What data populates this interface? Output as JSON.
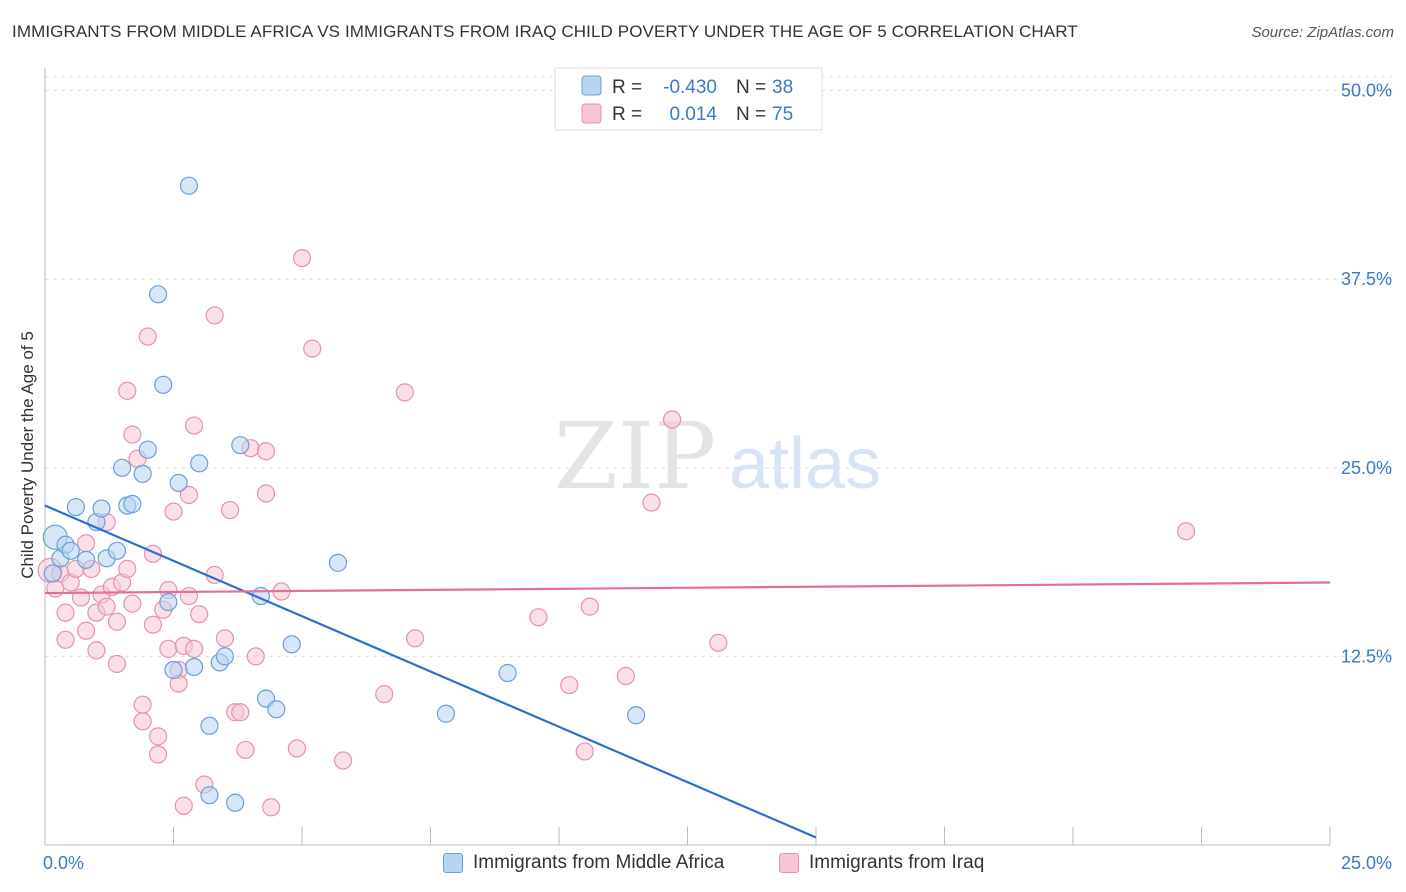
{
  "title": "IMMIGRANTS FROM MIDDLE AFRICA VS IMMIGRANTS FROM IRAQ CHILD POVERTY UNDER THE AGE OF 5 CORRELATION CHART",
  "source": "Source: ZipAtlas.com",
  "watermark": {
    "zip": "ZIP",
    "atlas": "atlas"
  },
  "colors": {
    "blue_fill": "#b8d4f3",
    "blue_stroke": "#6b9fd8",
    "blue_line": "#2c6fcf",
    "pink_fill": "#f7c5d5",
    "pink_stroke": "#e592ad",
    "pink_line": "#e0709a",
    "tick_text": "#3a78c9",
    "grid": "#dddddd"
  },
  "legend_top": [
    {
      "r_label": "R =",
      "r_value": "-0.430",
      "n_label": "N =",
      "n_value": "38"
    },
    {
      "r_label": "R =",
      "r_value": "0.014",
      "n_label": "N =",
      "n_value": "75"
    }
  ],
  "chart_data": {
    "type": "scatter",
    "title": "IMMIGRANTS FROM MIDDLE AFRICA VS IMMIGRANTS FROM IRAQ CHILD POVERTY UNDER THE AGE OF 5 CORRELATION CHART",
    "xlabel": "",
    "ylabel": "Child Poverty Under the Age of 5",
    "xlim": [
      0,
      25
    ],
    "ylim": [
      0,
      51.5
    ],
    "x_tick_labels": [
      "0.0%",
      "25.0%"
    ],
    "y_ticks": [
      12.5,
      25.0,
      37.5,
      50.0
    ],
    "y_tick_labels": [
      "12.5%",
      "25.0%",
      "37.5%",
      "50.0%"
    ],
    "grid": true,
    "series": [
      {
        "name": "Immigrants from Middle Africa",
        "color": "blue",
        "r": -0.43,
        "n": 38,
        "trend": {
          "x": [
            0,
            15.0
          ],
          "y": [
            22.5,
            0.5
          ]
        },
        "points": [
          {
            "x": 0.2,
            "y": 20.4,
            "big": true
          },
          {
            "x": 0.3,
            "y": 19.0
          },
          {
            "x": 0.4,
            "y": 19.9
          },
          {
            "x": 0.5,
            "y": 19.5
          },
          {
            "x": 0.6,
            "y": 22.4
          },
          {
            "x": 0.8,
            "y": 18.9
          },
          {
            "x": 1.0,
            "y": 21.4
          },
          {
            "x": 1.1,
            "y": 22.3
          },
          {
            "x": 1.2,
            "y": 19.0
          },
          {
            "x": 1.4,
            "y": 19.5
          },
          {
            "x": 1.5,
            "y": 25.0
          },
          {
            "x": 1.6,
            "y": 22.5
          },
          {
            "x": 1.7,
            "y": 22.6
          },
          {
            "x": 1.9,
            "y": 24.6
          },
          {
            "x": 2.0,
            "y": 26.2
          },
          {
            "x": 2.2,
            "y": 36.5
          },
          {
            "x": 2.3,
            "y": 30.5
          },
          {
            "x": 2.4,
            "y": 16.1
          },
          {
            "x": 2.5,
            "y": 11.6
          },
          {
            "x": 2.6,
            "y": 24.0
          },
          {
            "x": 2.8,
            "y": 43.7
          },
          {
            "x": 2.9,
            "y": 11.8
          },
          {
            "x": 3.0,
            "y": 25.3
          },
          {
            "x": 3.2,
            "y": 7.9
          },
          {
            "x": 3.2,
            "y": 3.3
          },
          {
            "x": 3.4,
            "y": 12.1
          },
          {
            "x": 3.5,
            "y": 12.5
          },
          {
            "x": 3.8,
            "y": 26.5
          },
          {
            "x": 3.7,
            "y": 2.8
          },
          {
            "x": 4.2,
            "y": 16.5
          },
          {
            "x": 4.3,
            "y": 9.7
          },
          {
            "x": 4.5,
            "y": 9.0
          },
          {
            "x": 4.8,
            "y": 13.3
          },
          {
            "x": 5.7,
            "y": 18.7
          },
          {
            "x": 7.8,
            "y": 8.7
          },
          {
            "x": 9.0,
            "y": 11.4
          },
          {
            "x": 11.5,
            "y": 8.6
          },
          {
            "x": 0.15,
            "y": 18.0
          }
        ]
      },
      {
        "name": "Immigrants from Iraq",
        "color": "pink",
        "r": 0.014,
        "n": 75,
        "trend": {
          "x": [
            0,
            25.0
          ],
          "y": [
            16.7,
            17.4
          ]
        },
        "points": [
          {
            "x": 0.1,
            "y": 18.2,
            "big": true
          },
          {
            "x": 0.2,
            "y": 17.0
          },
          {
            "x": 0.3,
            "y": 18.0
          },
          {
            "x": 0.4,
            "y": 15.4
          },
          {
            "x": 0.4,
            "y": 13.6
          },
          {
            "x": 0.5,
            "y": 17.4
          },
          {
            "x": 0.6,
            "y": 18.3
          },
          {
            "x": 0.7,
            "y": 16.4
          },
          {
            "x": 0.8,
            "y": 20.0
          },
          {
            "x": 0.8,
            "y": 14.2
          },
          {
            "x": 0.9,
            "y": 18.3
          },
          {
            "x": 1.0,
            "y": 15.4
          },
          {
            "x": 1.0,
            "y": 12.9
          },
          {
            "x": 1.1,
            "y": 16.6
          },
          {
            "x": 1.2,
            "y": 21.4
          },
          {
            "x": 1.2,
            "y": 15.8
          },
          {
            "x": 1.3,
            "y": 17.1
          },
          {
            "x": 1.4,
            "y": 12.0
          },
          {
            "x": 1.4,
            "y": 14.8
          },
          {
            "x": 1.5,
            "y": 17.4
          },
          {
            "x": 1.6,
            "y": 18.3
          },
          {
            "x": 1.6,
            "y": 30.1
          },
          {
            "x": 1.7,
            "y": 16.0
          },
          {
            "x": 1.7,
            "y": 27.2
          },
          {
            "x": 1.8,
            "y": 25.6
          },
          {
            "x": 1.9,
            "y": 8.2
          },
          {
            "x": 1.9,
            "y": 9.3
          },
          {
            "x": 2.0,
            "y": 33.7
          },
          {
            "x": 2.1,
            "y": 19.3
          },
          {
            "x": 2.1,
            "y": 14.6
          },
          {
            "x": 2.2,
            "y": 6.0
          },
          {
            "x": 2.2,
            "y": 7.2
          },
          {
            "x": 2.3,
            "y": 15.6
          },
          {
            "x": 2.4,
            "y": 16.9
          },
          {
            "x": 2.4,
            "y": 13.0
          },
          {
            "x": 2.5,
            "y": 22.1
          },
          {
            "x": 2.6,
            "y": 11.6
          },
          {
            "x": 2.6,
            "y": 10.7
          },
          {
            "x": 2.7,
            "y": 13.2
          },
          {
            "x": 2.7,
            "y": 2.6
          },
          {
            "x": 2.8,
            "y": 16.5
          },
          {
            "x": 2.8,
            "y": 23.2
          },
          {
            "x": 2.9,
            "y": 13.0
          },
          {
            "x": 2.9,
            "y": 27.8
          },
          {
            "x": 3.0,
            "y": 15.3
          },
          {
            "x": 3.1,
            "y": 4.0
          },
          {
            "x": 3.3,
            "y": 17.9
          },
          {
            "x": 3.3,
            "y": 35.1
          },
          {
            "x": 3.5,
            "y": 13.7
          },
          {
            "x": 3.6,
            "y": 22.2
          },
          {
            "x": 3.7,
            "y": 8.8
          },
          {
            "x": 3.8,
            "y": 8.8
          },
          {
            "x": 3.9,
            "y": 6.3
          },
          {
            "x": 4.0,
            "y": 26.3
          },
          {
            "x": 4.1,
            "y": 12.5
          },
          {
            "x": 4.3,
            "y": 23.3
          },
          {
            "x": 4.3,
            "y": 26.1
          },
          {
            "x": 4.4,
            "y": 2.5
          },
          {
            "x": 4.6,
            "y": 16.8
          },
          {
            "x": 4.9,
            "y": 6.4
          },
          {
            "x": 5.0,
            "y": 38.9
          },
          {
            "x": 5.2,
            "y": 32.9
          },
          {
            "x": 5.8,
            "y": 5.6
          },
          {
            "x": 6.6,
            "y": 10.0
          },
          {
            "x": 7.0,
            "y": 30.0
          },
          {
            "x": 7.2,
            "y": 13.7
          },
          {
            "x": 9.6,
            "y": 15.1
          },
          {
            "x": 10.2,
            "y": 10.6
          },
          {
            "x": 10.5,
            "y": 6.2
          },
          {
            "x": 10.6,
            "y": 15.8
          },
          {
            "x": 11.3,
            "y": 11.2
          },
          {
            "x": 11.8,
            "y": 22.7
          },
          {
            "x": 12.2,
            "y": 28.2
          },
          {
            "x": 13.1,
            "y": 13.4
          },
          {
            "x": 22.2,
            "y": 20.8
          }
        ]
      }
    ]
  }
}
